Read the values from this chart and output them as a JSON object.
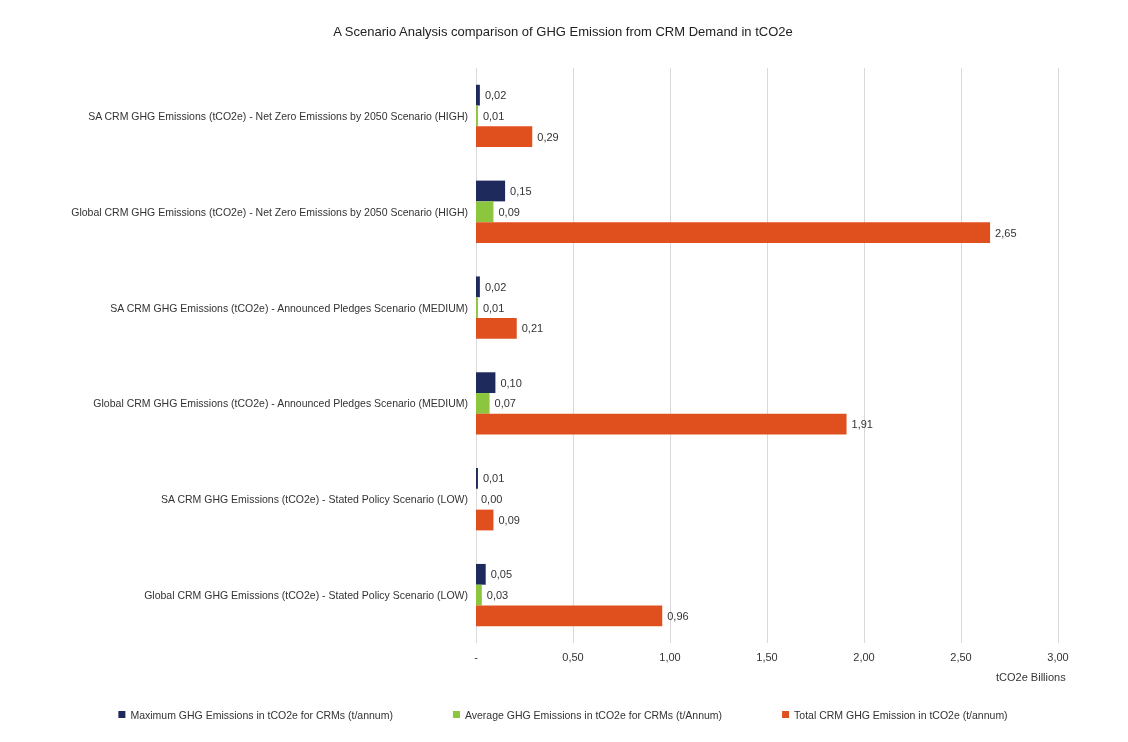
{
  "chart_data": {
    "type": "bar",
    "orientation": "horizontal",
    "title": "A Scenario Analysis comparison of GHG Emission from CRM Demand in tCO2e",
    "xlabel": "tCO2e Billions",
    "categories": [
      "SA CRM GHG Emissions (tCO2e) - Net Zero Emissions by 2050 Scenario (HIGH)",
      "Global CRM GHG Emissions (tCO2e) - Net Zero Emissions by 2050 Scenario (HIGH)",
      "SA CRM GHG Emissions (tCO2e) - Announced Pledges Scenario (MEDIUM)",
      "Global CRM GHG Emissions (tCO2e) - Announced Pledges Scenario (MEDIUM)",
      "SA CRM GHG Emissions (tCO2e) - Stated Policy Scenario (LOW)",
      "Global CRM GHG Emissions (tCO2e) - Stated Policy Scenario (LOW)"
    ],
    "series": [
      {
        "name": "Maximum GHG Emissions in tCO2e for CRMs (t/annum)",
        "color": "#1f2a5c",
        "values": [
          0.02,
          0.15,
          0.02,
          0.1,
          0.01,
          0.05
        ],
        "value_labels": [
          "0,02",
          "0,15",
          "0,02",
          "0,10",
          "0,01",
          "0,05"
        ]
      },
      {
        "name": "Average GHG Emissions in tCO2e for CRMs (t/Annum)",
        "color": "#8cc63f",
        "values": [
          0.01,
          0.09,
          0.01,
          0.07,
          0.0,
          0.03
        ],
        "value_labels": [
          "0,01",
          "0,09",
          "0,01",
          "0,07",
          "0,00",
          "0,03"
        ]
      },
      {
        "name": "Total CRM GHG Emission in tCO2e (t/annum)",
        "color": "#e0501f",
        "values": [
          0.29,
          2.65,
          0.21,
          1.91,
          0.09,
          0.96
        ],
        "value_labels": [
          "0,29",
          "2,65",
          "0,21",
          "1,91",
          "0,09",
          "0,96"
        ]
      }
    ],
    "xlim": [
      0,
      3
    ],
    "xticks": [
      {
        "value": 0,
        "label": "-"
      },
      {
        "value": 0.5,
        "label": "0,50"
      },
      {
        "value": 1,
        "label": "1,00"
      },
      {
        "value": 1.5,
        "label": "1,50"
      },
      {
        "value": 2,
        "label": "2,00"
      },
      {
        "value": 2.5,
        "label": "2,50"
      },
      {
        "value": 3,
        "label": "3,00"
      }
    ],
    "grid": "x",
    "legend": "bottom"
  }
}
